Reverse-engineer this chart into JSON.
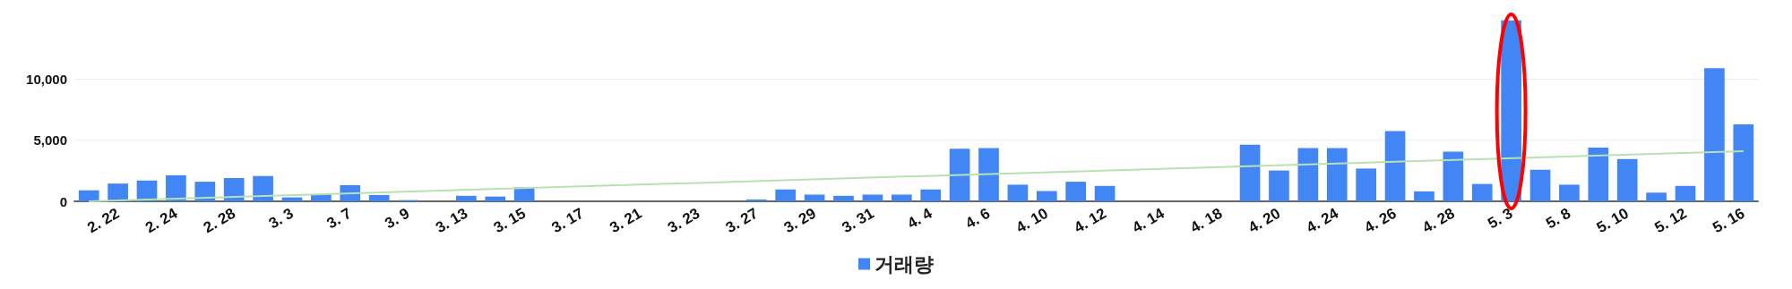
{
  "chart_data": {
    "type": "bar",
    "categories": [
      null,
      "2. 22",
      null,
      "2. 24",
      null,
      "2. 28",
      null,
      "3. 3",
      null,
      "3. 7",
      null,
      "3. 9",
      null,
      "3. 13",
      null,
      "3. 15",
      null,
      "3. 17",
      null,
      "3. 21",
      null,
      "3. 23",
      null,
      "3. 27",
      null,
      "3. 29",
      null,
      "3. 31",
      null,
      "4. 4",
      null,
      "4. 6",
      null,
      "4. 10",
      null,
      "4. 12",
      null,
      "4. 14",
      null,
      "4. 18",
      null,
      "4. 20",
      null,
      "4. 24",
      null,
      "4. 26",
      null,
      "4. 28",
      null,
      "5. 3",
      null,
      "5. 8",
      null,
      "5. 10",
      null,
      "5. 12",
      null,
      "5. 16"
    ],
    "series": [
      {
        "name": "거래량",
        "color": "#4285f4",
        "values": [
          900,
          1450,
          1700,
          2130,
          1600,
          1900,
          2070,
          320,
          580,
          1320,
          520,
          100,
          0,
          450,
          390,
          1130,
          0,
          0,
          0,
          0,
          0,
          0,
          0,
          150,
          970,
          550,
          450,
          550,
          550,
          970,
          4300,
          4360,
          1360,
          840,
          1600,
          1260,
          0,
          0,
          0,
          0,
          4620,
          2520,
          4360,
          4360,
          2680,
          5750,
          810,
          4070,
          1420,
          14800,
          2580,
          1360,
          4390,
          3460,
          710,
          1260,
          10890,
          6300
        ]
      },
      {
        "type": "line",
        "color": "#b7e1b0",
        "values": [
          0,
          null,
          null,
          null,
          null,
          null,
          null,
          null,
          null,
          null,
          null,
          null,
          null,
          null,
          null,
          null,
          null,
          null,
          null,
          null,
          null,
          null,
          null,
          null,
          null,
          null,
          null,
          null,
          null,
          null,
          null,
          null,
          null,
          null,
          null,
          null,
          null,
          null,
          null,
          null,
          null,
          null,
          null,
          null,
          null,
          null,
          null,
          null,
          null,
          null,
          null,
          null,
          null,
          null,
          null,
          null,
          null,
          4100
        ]
      }
    ],
    "ylim": [
      0,
      15000
    ],
    "yticks": [
      0,
      {
        "value": 5000,
        "label": "5,000"
      },
      {
        "value": 10000,
        "label": "10,000"
      }
    ],
    "grid": "y",
    "legend": "bottom"
  }
}
